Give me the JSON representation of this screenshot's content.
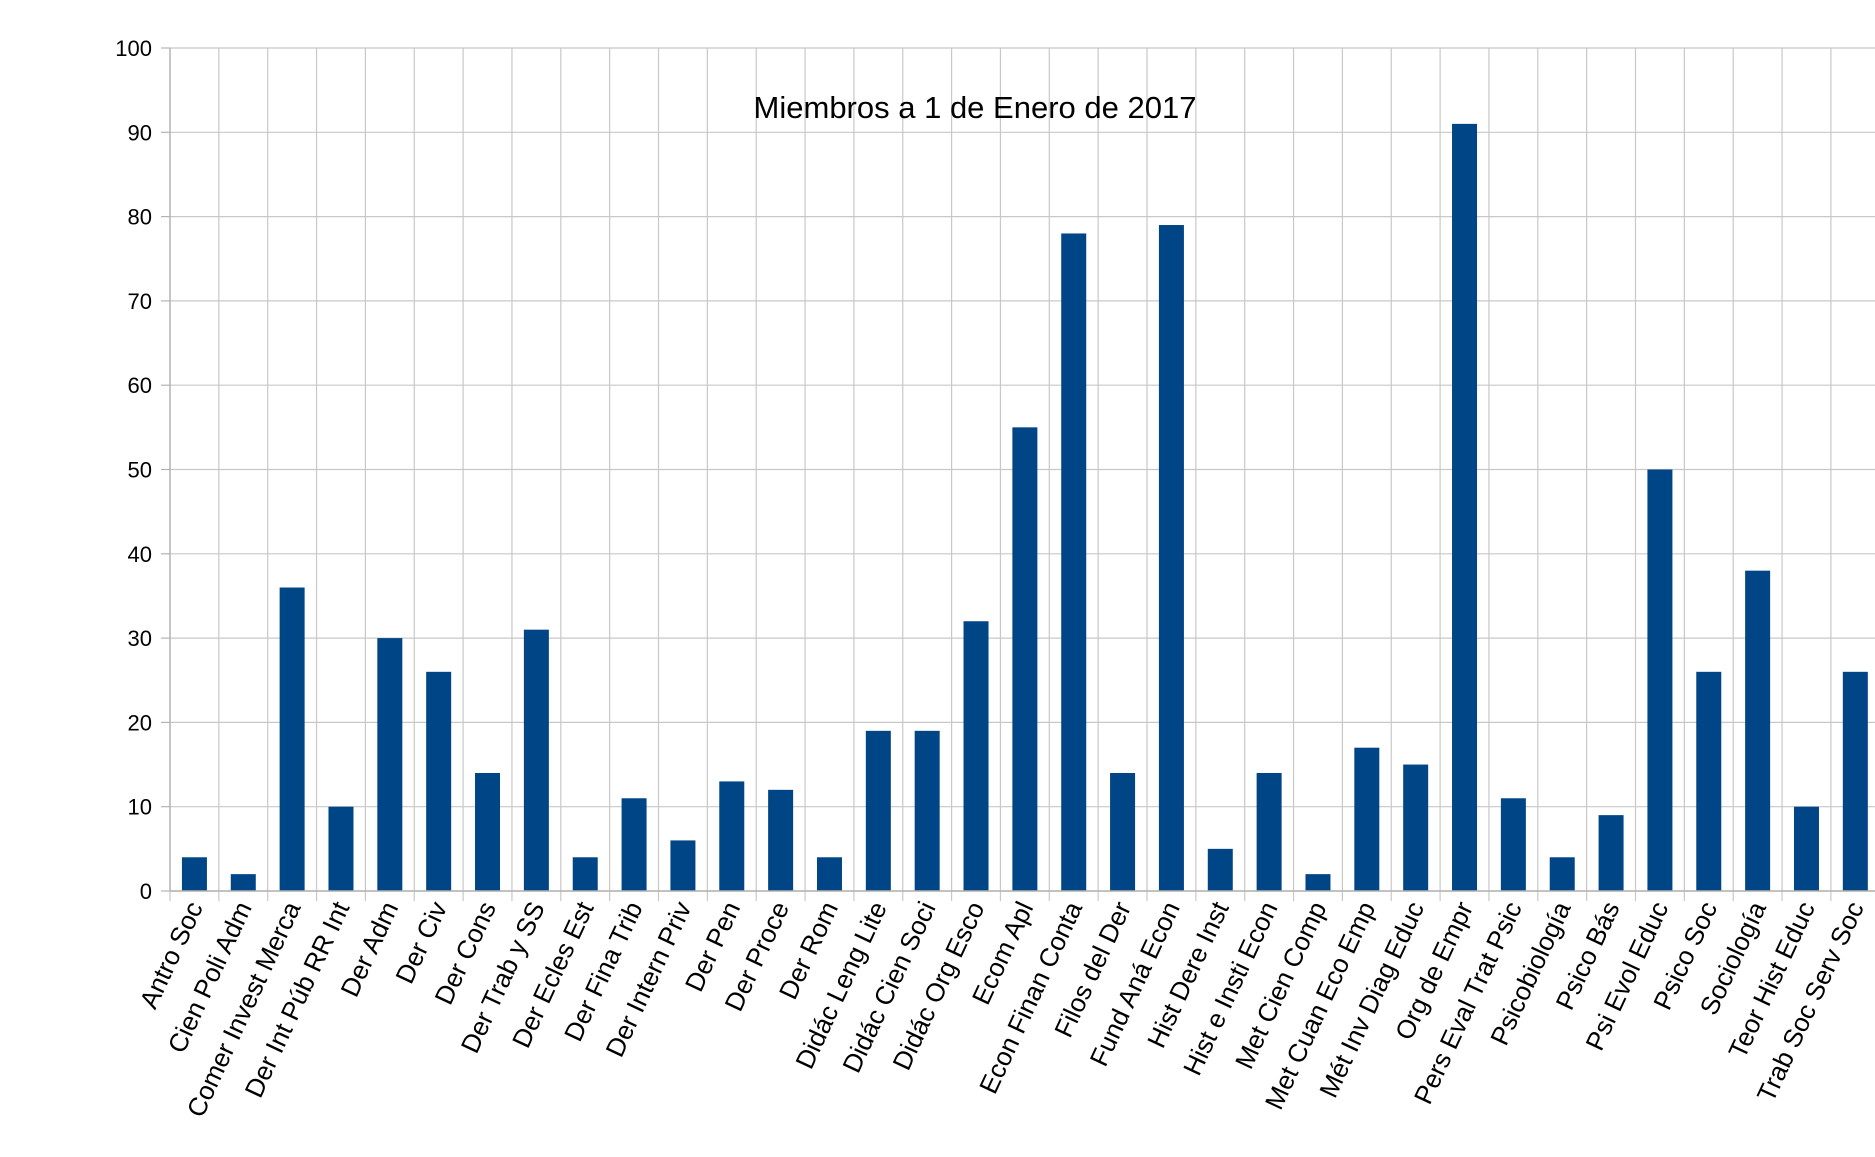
{
  "chart_data": {
    "type": "bar",
    "title": "Miembros a 1 de Enero de 2017",
    "xlabel": "",
    "ylabel": "",
    "ylim": [
      0,
      100
    ],
    "yticks": [
      0,
      10,
      20,
      30,
      40,
      50,
      60,
      70,
      80,
      90,
      100
    ],
    "grid": true,
    "legend": "none",
    "bar_color": "#004586",
    "categories": [
      "Antro Soc",
      "Cien Poli Adm",
      "Comer Invest Merca",
      "Der Int Púb RR Int",
      "Der Adm",
      "Der Civ",
      "Der Cons",
      "Der Trab y SS",
      "Der Ecles Est",
      "Der Fina Trib",
      "Der Intern Priv",
      "Der Pen",
      "Der Proce",
      "Der Rom",
      "Didác Leng Lite",
      "Didác Cien Soci",
      "Didác Org Esco",
      "Ecom Apl",
      "Econ Finan Conta",
      "Filos del Der",
      "Fund Aná Econ",
      "Hist Dere Inst",
      "Hist e Insti Econ",
      "Met Cien Comp",
      "Met Cuan Eco Emp",
      "Mét Inv Diag Educ",
      "Org de Empr",
      "Pers Eval Trat Psic",
      "Psicobiología",
      "Psico Bás",
      "Psi Evol Educ",
      "Psico Soc",
      "Sociología",
      "Teor Hist Educ",
      "Trab Soc Serv Soc"
    ],
    "values": [
      4,
      2,
      36,
      10,
      30,
      26,
      14,
      31,
      4,
      11,
      6,
      13,
      12,
      4,
      19,
      19,
      32,
      55,
      78,
      14,
      79,
      5,
      14,
      2,
      17,
      15,
      91,
      11,
      4,
      9,
      50,
      26,
      38,
      10,
      26
    ]
  }
}
